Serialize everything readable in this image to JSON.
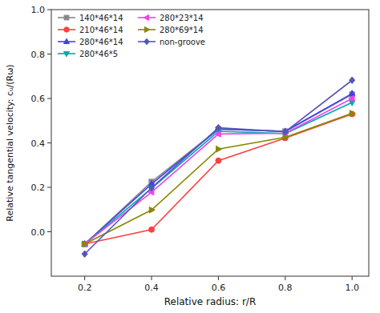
{
  "chart_data": {
    "type": "line",
    "xlabel": "Relative radius: r/R",
    "ylabel": "Relative tangential velocity: cᵤ/(Rω)",
    "x": [
      0.2,
      0.4,
      0.6,
      0.8,
      1.0
    ],
    "series": [
      {
        "name": "140*46*14",
        "color": "#888888",
        "marker": "square",
        "values": [
          -0.055,
          0.225,
          0.462,
          0.452,
          0.618
        ]
      },
      {
        "name": "210*46*14",
        "color": "#ff4040",
        "marker": "circle",
        "values": [
          -0.055,
          0.01,
          0.32,
          0.422,
          0.53
        ]
      },
      {
        "name": "280*46*14",
        "color": "#4040ee",
        "marker": "triangle-up",
        "values": [
          -0.055,
          0.215,
          0.462,
          0.452,
          0.622
        ]
      },
      {
        "name": "280*46*5",
        "color": "#00aaaa",
        "marker": "triangle-down",
        "values": [
          -0.055,
          0.195,
          0.452,
          0.442,
          0.582
        ]
      },
      {
        "name": "280*23*14",
        "color": "#ee44ee",
        "marker": "triangle-left",
        "values": [
          -0.055,
          0.178,
          0.44,
          0.443,
          0.6
        ]
      },
      {
        "name": "280*69*14",
        "color": "#888800",
        "marker": "triangle-right",
        "values": [
          -0.055,
          0.098,
          0.372,
          0.425,
          0.533
        ]
      },
      {
        "name": "non-groove",
        "color": "#5555bb",
        "marker": "diamond",
        "values": [
          -0.1,
          0.198,
          0.468,
          0.45,
          0.682
        ]
      }
    ],
    "xlim": [
      0.1,
      1.05
    ],
    "ylim": [
      -0.2,
      1.0
    ],
    "xticks": [
      0.2,
      0.4,
      0.6,
      0.8,
      {
        "value": 1.0,
        "label": "1.0"
      }
    ],
    "yticks": [
      {
        "value": 0.0,
        "label": "0.0"
      },
      0.2,
      0.4,
      0.6,
      0.8,
      {
        "value": 1.0,
        "label": "1.0"
      }
    ],
    "grid": false,
    "legend": "upper left"
  }
}
